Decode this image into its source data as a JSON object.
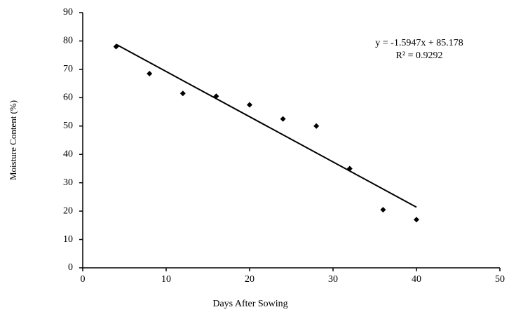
{
  "chart_data": {
    "type": "scatter",
    "x_label": "Days After Sowing",
    "y_label": "Moisture Content (%)",
    "annotations": [
      "y = -1.5947x + 85.178",
      "R² = 0.9292"
    ],
    "x": [
      4,
      8,
      12,
      16,
      20,
      24,
      28,
      32,
      36,
      40
    ],
    "values": [
      78,
      68.5,
      61.5,
      60.5,
      57.5,
      52.5,
      50,
      35,
      20.5,
      17
    ],
    "color": "#000000",
    "trendline": {
      "x": [
        4,
        40
      ],
      "values": [
        78.8,
        21.4
      ],
      "color": "#000000"
    },
    "xlim": [
      0,
      50
    ],
    "xticks": [
      0,
      10,
      20,
      30,
      40,
      50
    ],
    "ylim": [
      0,
      90
    ],
    "yticks": [
      0,
      10,
      20,
      30,
      40,
      50,
      60,
      70,
      80,
      90
    ],
    "grid": false
  }
}
